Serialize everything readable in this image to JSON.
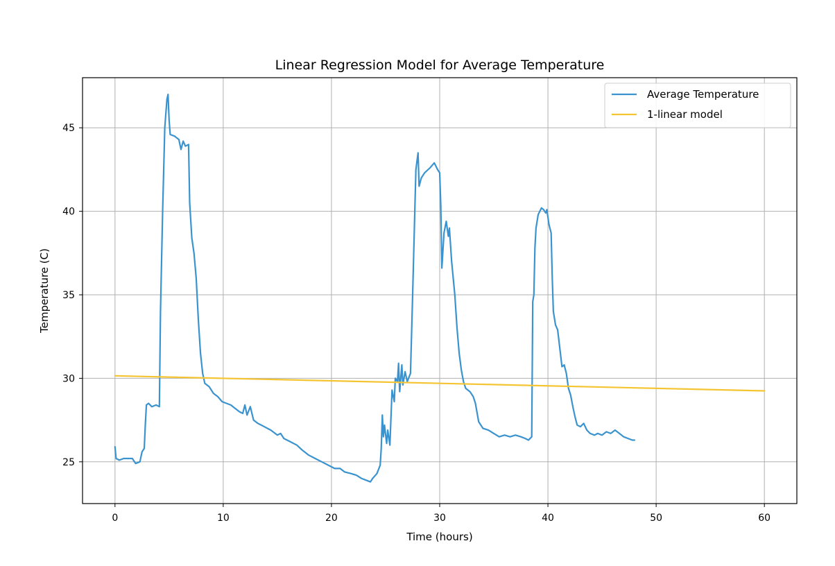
{
  "chart_data": {
    "type": "line",
    "title": "Linear Regression Model for Average Temperature",
    "xlabel": "Time (hours)",
    "ylabel": "Temperature (C)",
    "xlim": [
      -3,
      63
    ],
    "ylim": [
      22.5,
      48
    ],
    "xticks": [
      0,
      10,
      20,
      30,
      40,
      50,
      60
    ],
    "yticks": [
      25,
      30,
      35,
      40,
      45
    ],
    "grid": true,
    "legend_position": "top-right",
    "colors": {
      "avg": "#3a93cf",
      "model": "#f5c431"
    },
    "series": [
      {
        "name": "Average Temperature",
        "color": "#3a93cf",
        "points": [
          [
            0,
            25.9
          ],
          [
            0.1,
            25.2
          ],
          [
            0.4,
            25.1
          ],
          [
            0.8,
            25.2
          ],
          [
            1.2,
            25.2
          ],
          [
            1.6,
            25.2
          ],
          [
            1.9,
            24.9
          ],
          [
            2.3,
            25.0
          ],
          [
            2.5,
            25.6
          ],
          [
            2.7,
            25.8
          ],
          [
            2.8,
            27.2
          ],
          [
            2.9,
            28.4
          ],
          [
            3.1,
            28.5
          ],
          [
            3.4,
            28.3
          ],
          [
            3.8,
            28.4
          ],
          [
            4.1,
            28.3
          ],
          [
            4.2,
            34.0
          ],
          [
            4.4,
            40.0
          ],
          [
            4.6,
            45.0
          ],
          [
            4.8,
            46.7
          ],
          [
            4.9,
            47.0
          ],
          [
            5.0,
            45.5
          ],
          [
            5.1,
            44.6
          ],
          [
            5.5,
            44.5
          ],
          [
            5.9,
            44.3
          ],
          [
            6.1,
            43.7
          ],
          [
            6.3,
            44.2
          ],
          [
            6.5,
            43.9
          ],
          [
            6.8,
            44.0
          ],
          [
            6.9,
            40.5
          ],
          [
            7.1,
            38.4
          ],
          [
            7.3,
            37.5
          ],
          [
            7.5,
            36.0
          ],
          [
            7.7,
            33.5
          ],
          [
            7.9,
            31.5
          ],
          [
            8.1,
            30.3
          ],
          [
            8.3,
            29.7
          ],
          [
            8.7,
            29.5
          ],
          [
            9.1,
            29.1
          ],
          [
            9.5,
            28.9
          ],
          [
            9.9,
            28.6
          ],
          [
            10.3,
            28.5
          ],
          [
            10.7,
            28.4
          ],
          [
            11.1,
            28.2
          ],
          [
            11.5,
            28.0
          ],
          [
            11.8,
            27.9
          ],
          [
            12.0,
            28.4
          ],
          [
            12.2,
            27.8
          ],
          [
            12.5,
            28.3
          ],
          [
            12.8,
            27.5
          ],
          [
            13.2,
            27.3
          ],
          [
            13.8,
            27.1
          ],
          [
            14.4,
            26.9
          ],
          [
            15.0,
            26.6
          ],
          [
            15.3,
            26.7
          ],
          [
            15.6,
            26.4
          ],
          [
            16.2,
            26.2
          ],
          [
            16.8,
            26.0
          ],
          [
            17.3,
            25.7
          ],
          [
            17.9,
            25.4
          ],
          [
            18.5,
            25.2
          ],
          [
            19.1,
            25.0
          ],
          [
            19.7,
            24.8
          ],
          [
            20.3,
            24.6
          ],
          [
            20.8,
            24.6
          ],
          [
            21.2,
            24.4
          ],
          [
            21.8,
            24.3
          ],
          [
            22.3,
            24.2
          ],
          [
            22.8,
            24.0
          ],
          [
            23.2,
            23.9
          ],
          [
            23.6,
            23.8
          ],
          [
            23.8,
            24.0
          ],
          [
            24.2,
            24.3
          ],
          [
            24.5,
            24.8
          ],
          [
            24.6,
            25.8
          ],
          [
            24.7,
            27.8
          ],
          [
            24.8,
            26.5
          ],
          [
            24.9,
            27.2
          ],
          [
            25.1,
            26.1
          ],
          [
            25.2,
            26.9
          ],
          [
            25.4,
            26.0
          ],
          [
            25.6,
            29.3
          ],
          [
            25.8,
            28.6
          ],
          [
            25.9,
            30.0
          ],
          [
            26.1,
            29.8
          ],
          [
            26.2,
            30.9
          ],
          [
            26.3,
            29.2
          ],
          [
            26.5,
            30.8
          ],
          [
            26.6,
            29.6
          ],
          [
            26.8,
            30.4
          ],
          [
            27.0,
            29.8
          ],
          [
            27.3,
            30.3
          ],
          [
            27.5,
            35.0
          ],
          [
            27.7,
            40.0
          ],
          [
            27.8,
            42.5
          ],
          [
            28.0,
            43.5
          ],
          [
            28.1,
            41.5
          ],
          [
            28.3,
            42.0
          ],
          [
            28.6,
            42.3
          ],
          [
            29.1,
            42.6
          ],
          [
            29.5,
            42.9
          ],
          [
            29.8,
            42.5
          ],
          [
            30.0,
            42.3
          ],
          [
            30.1,
            40.3
          ],
          [
            30.2,
            36.6
          ],
          [
            30.4,
            38.7
          ],
          [
            30.6,
            39.4
          ],
          [
            30.8,
            38.5
          ],
          [
            30.9,
            39.0
          ],
          [
            31.1,
            37.0
          ],
          [
            31.4,
            35.0
          ],
          [
            31.6,
            33.0
          ],
          [
            31.8,
            31.5
          ],
          [
            32.0,
            30.5
          ],
          [
            32.2,
            29.8
          ],
          [
            32.4,
            29.4
          ],
          [
            32.8,
            29.2
          ],
          [
            33.1,
            28.9
          ],
          [
            33.3,
            28.5
          ],
          [
            33.6,
            27.4
          ],
          [
            34.0,
            27.0
          ],
          [
            34.5,
            26.9
          ],
          [
            35.0,
            26.7
          ],
          [
            35.5,
            26.5
          ],
          [
            36.0,
            26.6
          ],
          [
            36.5,
            26.5
          ],
          [
            37.0,
            26.6
          ],
          [
            37.5,
            26.5
          ],
          [
            37.9,
            26.4
          ],
          [
            38.2,
            26.3
          ],
          [
            38.5,
            26.5
          ],
          [
            38.6,
            34.6
          ],
          [
            38.7,
            35.0
          ],
          [
            38.8,
            37.8
          ],
          [
            38.9,
            39.0
          ],
          [
            39.1,
            39.8
          ],
          [
            39.4,
            40.2
          ],
          [
            39.6,
            40.1
          ],
          [
            39.8,
            39.9
          ],
          [
            39.9,
            40.1
          ],
          [
            40.1,
            39.2
          ],
          [
            40.3,
            38.7
          ],
          [
            40.4,
            36.0
          ],
          [
            40.5,
            34.0
          ],
          [
            40.7,
            33.2
          ],
          [
            40.9,
            32.9
          ],
          [
            41.1,
            31.8
          ],
          [
            41.3,
            30.7
          ],
          [
            41.5,
            30.8
          ],
          [
            41.7,
            30.3
          ],
          [
            41.9,
            29.4
          ],
          [
            42.1,
            29.0
          ],
          [
            42.3,
            28.3
          ],
          [
            42.5,
            27.7
          ],
          [
            42.7,
            27.2
          ],
          [
            43.0,
            27.1
          ],
          [
            43.3,
            27.3
          ],
          [
            43.6,
            26.9
          ],
          [
            43.9,
            26.7
          ],
          [
            44.3,
            26.6
          ],
          [
            44.6,
            26.7
          ],
          [
            45.0,
            26.6
          ],
          [
            45.4,
            26.8
          ],
          [
            45.8,
            26.7
          ],
          [
            46.2,
            26.9
          ],
          [
            46.6,
            26.7
          ],
          [
            47.0,
            26.5
          ],
          [
            47.4,
            26.4
          ],
          [
            47.8,
            26.3
          ],
          [
            48.0,
            26.3
          ]
        ]
      },
      {
        "name": "1-linear model",
        "color": "#f5c431",
        "points": [
          [
            0,
            30.15
          ],
          [
            60,
            29.25
          ]
        ]
      }
    ]
  }
}
